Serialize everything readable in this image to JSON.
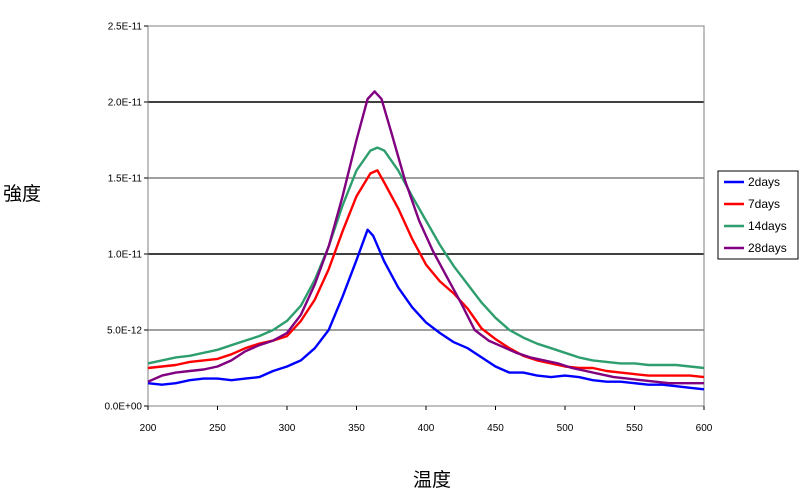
{
  "chart_data": {
    "type": "line",
    "xlabel": "温度",
    "ylabel": "強度",
    "xlim": [
      200,
      600
    ],
    "ylim": [
      0,
      2.5e-11
    ],
    "x_ticks": [
      200,
      250,
      300,
      350,
      400,
      450,
      500,
      550,
      600
    ],
    "x_tick_labels": [
      "200",
      "250",
      "300",
      "350",
      "400",
      "450",
      "500",
      "550",
      "600"
    ],
    "y_ticks": [
      0,
      5e-12,
      1e-11,
      1.5e-11,
      2e-11,
      2.5e-11
    ],
    "y_tick_labels": [
      "0.0E+00",
      "5.0E-12",
      "1.0E-11",
      "1.5E-11",
      "2.0E-11",
      "2.5E-11"
    ],
    "grid": "horizontal",
    "legend_position": "right",
    "series": [
      {
        "name": "2days",
        "color": "#0000ff",
        "points": [
          [
            200,
            1.5e-12
          ],
          [
            210,
            1.4e-12
          ],
          [
            220,
            1.5e-12
          ],
          [
            230,
            1.7e-12
          ],
          [
            240,
            1.8e-12
          ],
          [
            250,
            1.8e-12
          ],
          [
            260,
            1.7e-12
          ],
          [
            270,
            1.8e-12
          ],
          [
            280,
            1.9e-12
          ],
          [
            290,
            2.3e-12
          ],
          [
            300,
            2.6e-12
          ],
          [
            310,
            3e-12
          ],
          [
            320,
            3.8e-12
          ],
          [
            330,
            5e-12
          ],
          [
            340,
            7.2e-12
          ],
          [
            350,
            9.6e-12
          ],
          [
            358,
            1.16e-11
          ],
          [
            362,
            1.12e-11
          ],
          [
            370,
            9.5e-12
          ],
          [
            380,
            7.8e-12
          ],
          [
            390,
            6.5e-12
          ],
          [
            400,
            5.5e-12
          ],
          [
            410,
            4.8e-12
          ],
          [
            420,
            4.2e-12
          ],
          [
            430,
            3.8e-12
          ],
          [
            440,
            3.2e-12
          ],
          [
            450,
            2.6e-12
          ],
          [
            460,
            2.2e-12
          ],
          [
            470,
            2.2e-12
          ],
          [
            480,
            2e-12
          ],
          [
            490,
            1.9e-12
          ],
          [
            500,
            2e-12
          ],
          [
            510,
            1.9e-12
          ],
          [
            520,
            1.7e-12
          ],
          [
            530,
            1.6e-12
          ],
          [
            540,
            1.6e-12
          ],
          [
            550,
            1.5e-12
          ],
          [
            560,
            1.4e-12
          ],
          [
            570,
            1.4e-12
          ],
          [
            580,
            1.3e-12
          ],
          [
            590,
            1.2e-12
          ],
          [
            600,
            1.1e-12
          ]
        ]
      },
      {
        "name": "7days",
        "color": "#ff0000",
        "points": [
          [
            200,
            2.5e-12
          ],
          [
            210,
            2.6e-12
          ],
          [
            220,
            2.7e-12
          ],
          [
            230,
            2.9e-12
          ],
          [
            240,
            3e-12
          ],
          [
            250,
            3.1e-12
          ],
          [
            260,
            3.4e-12
          ],
          [
            270,
            3.8e-12
          ],
          [
            280,
            4.1e-12
          ],
          [
            290,
            4.3e-12
          ],
          [
            300,
            4.6e-12
          ],
          [
            310,
            5.6e-12
          ],
          [
            320,
            7e-12
          ],
          [
            330,
            9e-12
          ],
          [
            340,
            1.15e-11
          ],
          [
            350,
            1.38e-11
          ],
          [
            360,
            1.53e-11
          ],
          [
            365,
            1.55e-11
          ],
          [
            370,
            1.47e-11
          ],
          [
            380,
            1.3e-11
          ],
          [
            390,
            1.1e-11
          ],
          [
            400,
            9.3e-12
          ],
          [
            410,
            8.2e-12
          ],
          [
            420,
            7.4e-12
          ],
          [
            430,
            6.4e-12
          ],
          [
            440,
            5.1e-12
          ],
          [
            450,
            4.4e-12
          ],
          [
            460,
            3.8e-12
          ],
          [
            470,
            3.3e-12
          ],
          [
            480,
            3e-12
          ],
          [
            490,
            2.8e-12
          ],
          [
            500,
            2.6e-12
          ],
          [
            510,
            2.5e-12
          ],
          [
            520,
            2.5e-12
          ],
          [
            530,
            2.3e-12
          ],
          [
            540,
            2.2e-12
          ],
          [
            550,
            2.1e-12
          ],
          [
            560,
            2e-12
          ],
          [
            570,
            2e-12
          ],
          [
            580,
            2e-12
          ],
          [
            590,
            2e-12
          ],
          [
            600,
            1.9e-12
          ]
        ]
      },
      {
        "name": "14days",
        "color": "#2e9e6e",
        "points": [
          [
            200,
            2.8e-12
          ],
          [
            210,
            3e-12
          ],
          [
            220,
            3.2e-12
          ],
          [
            230,
            3.3e-12
          ],
          [
            240,
            3.5e-12
          ],
          [
            250,
            3.7e-12
          ],
          [
            260,
            4e-12
          ],
          [
            270,
            4.3e-12
          ],
          [
            280,
            4.6e-12
          ],
          [
            290,
            5e-12
          ],
          [
            300,
            5.6e-12
          ],
          [
            310,
            6.6e-12
          ],
          [
            320,
            8.3e-12
          ],
          [
            330,
            1.05e-11
          ],
          [
            340,
            1.32e-11
          ],
          [
            350,
            1.55e-11
          ],
          [
            360,
            1.68e-11
          ],
          [
            365,
            1.7e-11
          ],
          [
            370,
            1.68e-11
          ],
          [
            380,
            1.55e-11
          ],
          [
            390,
            1.38e-11
          ],
          [
            400,
            1.22e-11
          ],
          [
            410,
            1.06e-11
          ],
          [
            420,
            9.2e-12
          ],
          [
            430,
            8e-12
          ],
          [
            440,
            6.8e-12
          ],
          [
            450,
            5.8e-12
          ],
          [
            460,
            5e-12
          ],
          [
            470,
            4.5e-12
          ],
          [
            480,
            4.1e-12
          ],
          [
            490,
            3.8e-12
          ],
          [
            500,
            3.5e-12
          ],
          [
            510,
            3.2e-12
          ],
          [
            520,
            3e-12
          ],
          [
            530,
            2.9e-12
          ],
          [
            540,
            2.8e-12
          ],
          [
            550,
            2.8e-12
          ],
          [
            560,
            2.7e-12
          ],
          [
            570,
            2.7e-12
          ],
          [
            580,
            2.7e-12
          ],
          [
            590,
            2.6e-12
          ],
          [
            600,
            2.5e-12
          ]
        ]
      },
      {
        "name": "28days",
        "color": "#800080",
        "points": [
          [
            200,
            1.6e-12
          ],
          [
            210,
            2e-12
          ],
          [
            220,
            2.2e-12
          ],
          [
            230,
            2.3e-12
          ],
          [
            240,
            2.4e-12
          ],
          [
            250,
            2.6e-12
          ],
          [
            260,
            3e-12
          ],
          [
            270,
            3.6e-12
          ],
          [
            280,
            4e-12
          ],
          [
            290,
            4.3e-12
          ],
          [
            300,
            4.8e-12
          ],
          [
            310,
            6e-12
          ],
          [
            320,
            8e-12
          ],
          [
            330,
            1.05e-11
          ],
          [
            340,
            1.38e-11
          ],
          [
            350,
            1.75e-11
          ],
          [
            358,
            2.02e-11
          ],
          [
            363,
            2.07e-11
          ],
          [
            368,
            2.02e-11
          ],
          [
            375,
            1.8e-11
          ],
          [
            385,
            1.48e-11
          ],
          [
            395,
            1.22e-11
          ],
          [
            405,
            1.02e-11
          ],
          [
            415,
            8.5e-12
          ],
          [
            425,
            6.8e-12
          ],
          [
            435,
            5e-12
          ],
          [
            445,
            4.3e-12
          ],
          [
            455,
            3.9e-12
          ],
          [
            465,
            3.5e-12
          ],
          [
            475,
            3.2e-12
          ],
          [
            485,
            3e-12
          ],
          [
            495,
            2.8e-12
          ],
          [
            505,
            2.5e-12
          ],
          [
            515,
            2.3e-12
          ],
          [
            525,
            2.1e-12
          ],
          [
            535,
            1.9e-12
          ],
          [
            545,
            1.8e-12
          ],
          [
            555,
            1.7e-12
          ],
          [
            565,
            1.6e-12
          ],
          [
            575,
            1.5e-12
          ],
          [
            585,
            1.5e-12
          ],
          [
            600,
            1.5e-12
          ]
        ]
      }
    ]
  }
}
